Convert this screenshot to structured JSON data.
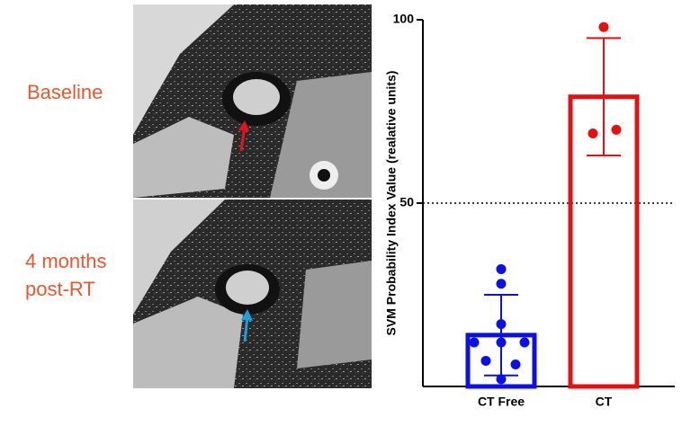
{
  "panel_labels": [
    "Baseline",
    "4 months",
    "post-RT"
  ],
  "chart_data": {
    "type": "bar",
    "ylabel": "SVM Probability Index Value (realative units)",
    "categories": [
      "CT Free",
      "CT"
    ],
    "values": [
      14,
      79
    ],
    "errors": [
      11,
      16
    ],
    "colors": [
      "#0a10e6",
      "#e61010"
    ],
    "points": [
      [
        32,
        28,
        17,
        12,
        12,
        12,
        7,
        6,
        2
      ],
      [
        98,
        69,
        70
      ]
    ],
    "ylim": [
      0,
      100
    ],
    "yticks": [
      50,
      100
    ],
    "reference_line": 50
  }
}
